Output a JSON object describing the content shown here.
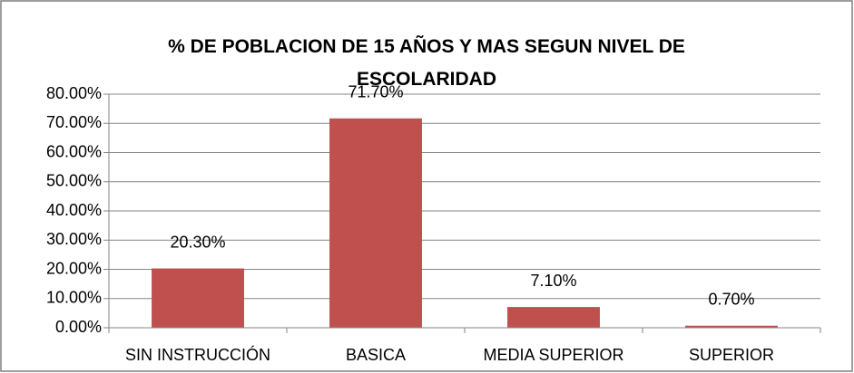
{
  "chart_data": {
    "type": "bar",
    "title": "% DE POBLACION DE 15 AÑOS Y MAS SEGUN NIVEL DE ESCOLARIDAD",
    "categories": [
      "SIN INSTRUCCIÓN",
      "BASICA",
      "MEDIA SUPERIOR",
      "SUPERIOR"
    ],
    "values": [
      20.3,
      71.7,
      7.1,
      0.7
    ],
    "value_labels": [
      "20.30%",
      "71.70%",
      "7.10%",
      "0.70%"
    ],
    "color": "#c0504d",
    "ylim": [
      0,
      80
    ],
    "yticks": [
      {
        "value": 0,
        "label": "0.00%"
      },
      {
        "value": 10,
        "label": "10.00%"
      },
      {
        "value": 20,
        "label": "20.00%"
      },
      {
        "value": 30,
        "label": "30.00%"
      },
      {
        "value": 40,
        "label": "40.00%"
      },
      {
        "value": 50,
        "label": "50.00%"
      },
      {
        "value": 60,
        "label": "60.00%"
      },
      {
        "value": 70,
        "label": "70.00%"
      },
      {
        "value": 80,
        "label": "80.00%"
      }
    ],
    "grid": true
  }
}
